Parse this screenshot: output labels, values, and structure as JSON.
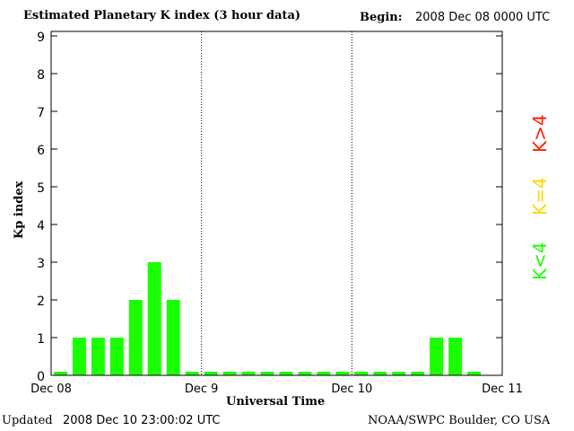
{
  "chart_data": {
    "type": "bar",
    "title": "Estimated Planetary K index (3 hour data)",
    "begin_label": "Begin:",
    "begin_value": "2008 Dec 08 0000 UTC",
    "xlabel": "Universal Time",
    "ylabel": "Kp index",
    "ylim": [
      0,
      9
    ],
    "yticks": [
      "0",
      "1",
      "2",
      "3",
      "4",
      "5",
      "6",
      "7",
      "8",
      "9"
    ],
    "xticks": [
      "Dec 08",
      "Dec 9",
      "Dec 10",
      "Dec 11"
    ],
    "values": [
      0,
      1,
      1,
      1,
      2,
      3,
      2,
      0,
      0,
      0,
      0,
      0,
      0,
      0,
      0,
      0,
      0,
      0,
      0,
      0,
      1,
      1,
      0,
      null
    ],
    "bar_color": "#1aff00",
    "legend": [
      {
        "label": "K<4",
        "color": "#1aff00"
      },
      {
        "label": "K=4",
        "color": "#ffd700"
      },
      {
        "label": "K>4",
        "color": "#ff2000"
      }
    ]
  },
  "footer": {
    "updated_label": "Updated",
    "updated_value": "2008 Dec 10 23:00:02 UTC",
    "source": "NOAA/SWPC Boulder, CO USA"
  }
}
